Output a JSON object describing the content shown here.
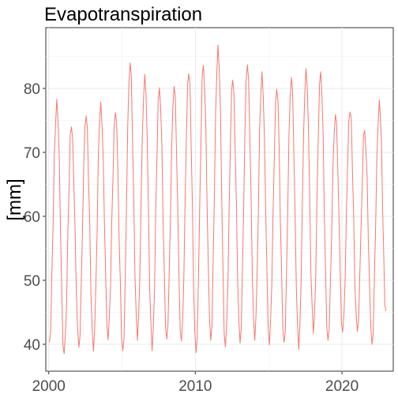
{
  "chart_data": {
    "type": "line",
    "title": "Evapotranspiration",
    "xlabel": "",
    "ylabel": "[mm]",
    "x_range": [
      1999.8,
      2023.5
    ],
    "ylim": [
      35.8,
      89.5
    ],
    "x_ticks": [
      2000,
      2010,
      2020
    ],
    "x_tick_labels": [
      "2000",
      "2010",
      "2020"
    ],
    "y_ticks": [
      40,
      50,
      60,
      70,
      80
    ],
    "y_tick_labels": [
      "40",
      "50",
      "60",
      "70",
      "80"
    ],
    "grid": true,
    "legend": "none",
    "series": [
      {
        "color": "#f8766d",
        "yearly_peaks": [
          {
            "x": 2000.55,
            "y": 78.3
          },
          {
            "x": 2001.55,
            "y": 74.0
          },
          {
            "x": 2002.55,
            "y": 75.7
          },
          {
            "x": 2003.55,
            "y": 77.9
          },
          {
            "x": 2004.55,
            "y": 76.2
          },
          {
            "x": 2005.55,
            "y": 84.0
          },
          {
            "x": 2006.55,
            "y": 82.2
          },
          {
            "x": 2007.55,
            "y": 80.1
          },
          {
            "x": 2008.55,
            "y": 80.3
          },
          {
            "x": 2009.55,
            "y": 82.3
          },
          {
            "x": 2010.55,
            "y": 83.6
          },
          {
            "x": 2011.55,
            "y": 86.8
          },
          {
            "x": 2012.55,
            "y": 81.3
          },
          {
            "x": 2013.55,
            "y": 83.7
          },
          {
            "x": 2014.55,
            "y": 82.6
          },
          {
            "x": 2015.55,
            "y": 79.9
          },
          {
            "x": 2016.55,
            "y": 81.7
          },
          {
            "x": 2017.55,
            "y": 83.1
          },
          {
            "x": 2018.55,
            "y": 82.6
          },
          {
            "x": 2019.55,
            "y": 75.9
          },
          {
            "x": 2020.55,
            "y": 76.3
          },
          {
            "x": 2021.55,
            "y": 73.4
          },
          {
            "x": 2022.55,
            "y": 78.2
          }
        ],
        "yearly_troughs": [
          {
            "x": 2000.05,
            "y": 40.3
          },
          {
            "x": 2001.05,
            "y": 38.5
          },
          {
            "x": 2002.05,
            "y": 39.5
          },
          {
            "x": 2003.05,
            "y": 38.9
          },
          {
            "x": 2004.05,
            "y": 40.7
          },
          {
            "x": 2005.05,
            "y": 39.0
          },
          {
            "x": 2006.05,
            "y": 40.6
          },
          {
            "x": 2007.05,
            "y": 39.0
          },
          {
            "x": 2008.05,
            "y": 40.8
          },
          {
            "x": 2009.05,
            "y": 40.5
          },
          {
            "x": 2010.05,
            "y": 38.7
          },
          {
            "x": 2011.05,
            "y": 40.6
          },
          {
            "x": 2012.05,
            "y": 39.6
          },
          {
            "x": 2013.05,
            "y": 40.2
          },
          {
            "x": 2014.05,
            "y": 40.6
          },
          {
            "x": 2015.05,
            "y": 39.9
          },
          {
            "x": 2016.05,
            "y": 40.3
          },
          {
            "x": 2017.05,
            "y": 39.2
          },
          {
            "x": 2018.05,
            "y": 41.7
          },
          {
            "x": 2019.05,
            "y": 40.6
          },
          {
            "x": 2020.05,
            "y": 41.9
          },
          {
            "x": 2021.05,
            "y": 42.0
          },
          {
            "x": 2022.05,
            "y": 40.0
          }
        ],
        "end": {
          "x": 2023.0,
          "y": 45.2
        }
      }
    ]
  }
}
